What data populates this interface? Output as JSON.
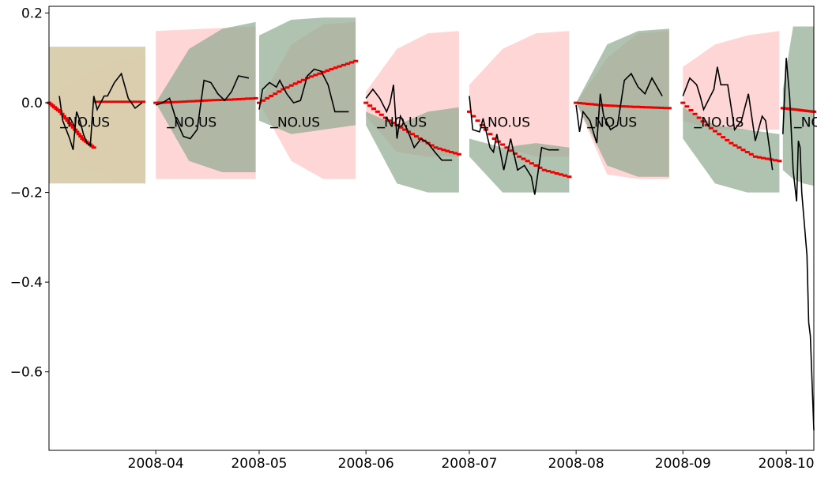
{
  "chart_data": {
    "type": "line",
    "title": "",
    "xlabel": "",
    "ylabel": "",
    "x_range": [
      "2008-03-01",
      "2008-10-09"
    ],
    "ylim": [
      -0.775,
      0.215
    ],
    "grid": false,
    "x_ticks": [
      {
        "date": "2008-04-01",
        "label": "2008-04"
      },
      {
        "date": "2008-05-01",
        "label": "2008-05"
      },
      {
        "date": "2008-06-01",
        "label": "2008-06"
      },
      {
        "date": "2008-07-01",
        "label": "2008-07"
      },
      {
        "date": "2008-08-01",
        "label": "2008-08"
      },
      {
        "date": "2008-09-01",
        "label": "2008-09"
      },
      {
        "date": "2008-10-01",
        "label": "2008-10"
      }
    ],
    "y_ticks": [
      {
        "value": 0.2,
        "label": "0.2"
      },
      {
        "value": 0.0,
        "label": "0.0"
      },
      {
        "value": -0.2,
        "label": "−0.2"
      },
      {
        "value": -0.4,
        "label": "−0.4"
      },
      {
        "value": -0.6,
        "label": "−0.6"
      }
    ],
    "colors": {
      "actual": "#000000",
      "forecast": "#ee0000",
      "band_red": "#ffc0c0",
      "band_green": "#8faa8f",
      "band_olive": "#d8ceac"
    },
    "segments": [
      {
        "label": "NO.US",
        "start": "2008-03-01",
        "mid": "2008-03-14",
        "end": "2008-03-29",
        "label_y": -0.045,
        "forecast": [
          0,
          -0.02,
          -0.05,
          -0.08,
          -0.1
        ],
        "forecast2": [
          0.002,
          0.003,
          0.004
        ],
        "band_red": [
          [
            0.005,
            -0.005
          ],
          [
            0.06,
            -0.14
          ],
          [
            0.095,
            -0.175
          ],
          [
            0.105,
            -0.18
          ]
        ],
        "band_olive": [
          [
            0.125,
            -0.18
          ],
          [
            0.125,
            -0.18
          ]
        ],
        "band_green": [],
        "actual": [
          {
            "d": "2008-03-04",
            "v": 0.015
          },
          {
            "d": "2008-03-05",
            "v": -0.04
          },
          {
            "d": "2008-03-06",
            "v": -0.06
          },
          {
            "d": "2008-03-07",
            "v": -0.08
          },
          {
            "d": "2008-03-08",
            "v": -0.105
          },
          {
            "d": "2008-03-09",
            "v": -0.02
          },
          {
            "d": "2008-03-10",
            "v": -0.04
          },
          {
            "d": "2008-03-11",
            "v": -0.07
          },
          {
            "d": "2008-03-12",
            "v": -0.09
          },
          {
            "d": "2008-03-13",
            "v": -0.095
          },
          {
            "d": "2008-03-14",
            "v": 0.015
          },
          {
            "d": "2008-03-15",
            "v": -0.015
          },
          {
            "d": "2008-03-17",
            "v": 0.015
          },
          {
            "d": "2008-03-18",
            "v": 0.015
          },
          {
            "d": "2008-03-20",
            "v": 0.045
          },
          {
            "d": "2008-03-22",
            "v": 0.065
          },
          {
            "d": "2008-03-24",
            "v": 0.01
          },
          {
            "d": "2008-03-26",
            "v": -0.012
          },
          {
            "d": "2008-03-28",
            "v": 0.0
          }
        ]
      },
      {
        "label": "NO.US",
        "start": "2008-04-01",
        "end": "2008-04-30",
        "label_y": -0.045,
        "forecast": [
          0.0,
          0.002,
          0.005,
          0.007,
          0.01
        ],
        "band_red": [
          [
            0.16,
            -0.17
          ],
          [
            0.17,
            -0.17
          ]
        ],
        "band_olive": [],
        "band_green": [
          [
            0.0,
            -0.0
          ],
          [
            0.12,
            -0.13
          ],
          [
            0.165,
            -0.155
          ],
          [
            0.18,
            -0.155
          ]
        ],
        "actual": [
          {
            "d": "2008-04-01",
            "v": -0.005
          },
          {
            "d": "2008-04-03",
            "v": 0.0
          },
          {
            "d": "2008-04-05",
            "v": 0.01
          },
          {
            "d": "2008-04-07",
            "v": -0.04
          },
          {
            "d": "2008-04-09",
            "v": -0.075
          },
          {
            "d": "2008-04-11",
            "v": -0.08
          },
          {
            "d": "2008-04-13",
            "v": -0.06
          },
          {
            "d": "2008-04-15",
            "v": 0.05
          },
          {
            "d": "2008-04-17",
            "v": 0.045
          },
          {
            "d": "2008-04-19",
            "v": 0.02
          },
          {
            "d": "2008-04-21",
            "v": 0.005
          },
          {
            "d": "2008-04-23",
            "v": 0.025
          },
          {
            "d": "2008-04-25",
            "v": 0.06
          },
          {
            "d": "2008-04-28",
            "v": 0.055
          }
        ]
      },
      {
        "label": "NO.US",
        "start": "2008-05-01",
        "end": "2008-05-29",
        "label_y": -0.045,
        "forecast": [
          0.0,
          0.03,
          0.055,
          0.075,
          0.093
        ],
        "band_red": [
          [
            0.0,
            -0.0
          ],
          [
            0.13,
            -0.13
          ],
          [
            0.175,
            -0.17
          ],
          [
            0.18,
            -0.17
          ]
        ],
        "band_olive": [],
        "band_green": [
          [
            0.15,
            -0.04
          ],
          [
            0.185,
            -0.07
          ],
          [
            0.19,
            -0.06
          ],
          [
            0.19,
            -0.05
          ]
        ],
        "actual": [
          {
            "d": "2008-05-01",
            "v": -0.015
          },
          {
            "d": "2008-05-02",
            "v": 0.03
          },
          {
            "d": "2008-05-04",
            "v": 0.045
          },
          {
            "d": "2008-05-06",
            "v": 0.035
          },
          {
            "d": "2008-05-07",
            "v": 0.05
          },
          {
            "d": "2008-05-09",
            "v": 0.02
          },
          {
            "d": "2008-05-11",
            "v": 0.0
          },
          {
            "d": "2008-05-13",
            "v": 0.005
          },
          {
            "d": "2008-05-15",
            "v": 0.06
          },
          {
            "d": "2008-05-17",
            "v": 0.075
          },
          {
            "d": "2008-05-19",
            "v": 0.07
          },
          {
            "d": "2008-05-21",
            "v": 0.04
          },
          {
            "d": "2008-05-23",
            "v": -0.02
          },
          {
            "d": "2008-05-27",
            "v": -0.02
          }
        ]
      },
      {
        "label": "NO.US",
        "start": "2008-06-01",
        "end": "2008-06-28",
        "label_y": -0.045,
        "forecast": [
          0.0,
          -0.04,
          -0.07,
          -0.1,
          -0.115
        ],
        "band_red": [
          [
            0.025,
            -0.03
          ],
          [
            0.12,
            -0.11
          ],
          [
            0.155,
            -0.12
          ],
          [
            0.16,
            -0.12
          ]
        ],
        "band_olive": [],
        "band_green": [
          [
            -0.02,
            -0.05
          ],
          [
            -0.05,
            -0.18
          ],
          [
            -0.02,
            -0.2
          ],
          [
            -0.01,
            -0.2
          ]
        ],
        "actual": [
          {
            "d": "2008-06-01",
            "v": 0.01
          },
          {
            "d": "2008-06-03",
            "v": 0.03
          },
          {
            "d": "2008-06-05",
            "v": 0.01
          },
          {
            "d": "2008-06-07",
            "v": -0.02
          },
          {
            "d": "2008-06-08",
            "v": 0.0
          },
          {
            "d": "2008-06-09",
            "v": 0.04
          },
          {
            "d": "2008-06-10",
            "v": -0.08
          },
          {
            "d": "2008-06-11",
            "v": -0.03
          },
          {
            "d": "2008-06-13",
            "v": -0.06
          },
          {
            "d": "2008-06-15",
            "v": -0.1
          },
          {
            "d": "2008-06-17",
            "v": -0.08
          },
          {
            "d": "2008-06-19",
            "v": -0.09
          },
          {
            "d": "2008-06-21",
            "v": -0.11
          },
          {
            "d": "2008-06-23",
            "v": -0.128
          },
          {
            "d": "2008-06-26",
            "v": -0.128
          }
        ]
      },
      {
        "label": "NO.US",
        "start": "2008-07-01",
        "end": "2008-07-30",
        "label_y": -0.045,
        "forecast": [
          -0.02,
          -0.08,
          -0.12,
          -0.15,
          -0.165
        ],
        "band_red": [
          [
            0.04,
            -0.02
          ],
          [
            0.12,
            -0.1
          ],
          [
            0.155,
            -0.12
          ],
          [
            0.16,
            -0.12
          ]
        ],
        "band_olive": [],
        "band_green": [
          [
            -0.08,
            -0.12
          ],
          [
            -0.1,
            -0.2
          ],
          [
            -0.09,
            -0.2
          ],
          [
            -0.1,
            -0.2
          ]
        ],
        "actual": [
          {
            "d": "2008-07-01",
            "v": 0.015
          },
          {
            "d": "2008-07-02",
            "v": -0.06
          },
          {
            "d": "2008-07-04",
            "v": -0.065
          },
          {
            "d": "2008-07-05",
            "v": -0.035
          },
          {
            "d": "2008-07-07",
            "v": -0.1
          },
          {
            "d": "2008-07-08",
            "v": -0.11
          },
          {
            "d": "2008-07-09",
            "v": -0.07
          },
          {
            "d": "2008-07-11",
            "v": -0.15
          },
          {
            "d": "2008-07-13",
            "v": -0.08
          },
          {
            "d": "2008-07-15",
            "v": -0.15
          },
          {
            "d": "2008-07-17",
            "v": -0.14
          },
          {
            "d": "2008-07-19",
            "v": -0.165
          },
          {
            "d": "2008-07-20",
            "v": -0.205
          },
          {
            "d": "2008-07-22",
            "v": -0.1
          },
          {
            "d": "2008-07-24",
            "v": -0.105
          },
          {
            "d": "2008-07-27",
            "v": -0.105
          }
        ]
      },
      {
        "label": "NO.US",
        "start": "2008-08-01",
        "end": "2008-08-28",
        "label_y": -0.045,
        "forecast": [
          0.0,
          -0.005,
          -0.008,
          -0.01,
          -0.012
        ],
        "band_red": [
          [
            0.0,
            -0.0
          ],
          [
            0.1,
            -0.16
          ],
          [
            0.155,
            -0.17
          ],
          [
            0.16,
            -0.17
          ]
        ],
        "band_olive": [],
        "band_green": [
          [
            0.0,
            -0.0
          ],
          [
            0.13,
            -0.14
          ],
          [
            0.16,
            -0.165
          ],
          [
            0.165,
            -0.165
          ]
        ],
        "actual": [
          {
            "d": "2008-08-01",
            "v": -0.005
          },
          {
            "d": "2008-08-02",
            "v": -0.065
          },
          {
            "d": "2008-08-03",
            "v": -0.02
          },
          {
            "d": "2008-08-05",
            "v": -0.04
          },
          {
            "d": "2008-08-07",
            "v": -0.09
          },
          {
            "d": "2008-08-08",
            "v": 0.02
          },
          {
            "d": "2008-08-09",
            "v": -0.03
          },
          {
            "d": "2008-08-11",
            "v": -0.06
          },
          {
            "d": "2008-08-13",
            "v": -0.05
          },
          {
            "d": "2008-08-15",
            "v": 0.05
          },
          {
            "d": "2008-08-17",
            "v": 0.065
          },
          {
            "d": "2008-08-19",
            "v": 0.035
          },
          {
            "d": "2008-08-21",
            "v": 0.02
          },
          {
            "d": "2008-08-23",
            "v": 0.055
          },
          {
            "d": "2008-08-26",
            "v": 0.015
          }
        ]
      },
      {
        "label": "NO.US",
        "start": "2008-09-01",
        "end": "2008-09-29",
        "label_y": -0.045,
        "forecast": [
          0.0,
          -0.05,
          -0.09,
          -0.12,
          -0.13
        ],
        "band_red": [
          [
            0.08,
            -0.04
          ],
          [
            0.13,
            -0.06
          ],
          [
            0.15,
            -0.06
          ],
          [
            0.16,
            -0.06
          ]
        ],
        "band_olive": [],
        "band_green": [
          [
            -0.01,
            -0.08
          ],
          [
            -0.05,
            -0.18
          ],
          [
            -0.06,
            -0.2
          ],
          [
            -0.07,
            -0.2
          ]
        ],
        "actual": [
          {
            "d": "2008-09-01",
            "v": 0.015
          },
          {
            "d": "2008-09-03",
            "v": 0.055
          },
          {
            "d": "2008-09-05",
            "v": 0.04
          },
          {
            "d": "2008-09-06",
            "v": 0.015
          },
          {
            "d": "2008-09-07",
            "v": -0.015
          },
          {
            "d": "2008-09-09",
            "v": 0.015
          },
          {
            "d": "2008-09-10",
            "v": 0.03
          },
          {
            "d": "2008-09-11",
            "v": 0.08
          },
          {
            "d": "2008-09-12",
            "v": 0.04
          },
          {
            "d": "2008-09-14",
            "v": 0.04
          },
          {
            "d": "2008-09-16",
            "v": -0.06
          },
          {
            "d": "2008-09-18",
            "v": -0.04
          },
          {
            "d": "2008-09-20",
            "v": 0.02
          },
          {
            "d": "2008-09-22",
            "v": -0.085
          },
          {
            "d": "2008-09-24",
            "v": -0.03
          },
          {
            "d": "2008-09-25",
            "v": -0.04
          },
          {
            "d": "2008-09-27",
            "v": -0.15
          }
        ]
      },
      {
        "label": "NO.US",
        "start": "2008-09-30",
        "end": "2008-10-09",
        "label_y": -0.045,
        "forecast": [
          -0.012,
          -0.014,
          -0.016,
          -0.018,
          -0.02
        ],
        "band_red": [],
        "band_olive": [],
        "band_green": [
          [
            0.03,
            -0.15
          ],
          [
            0.17,
            -0.17
          ],
          [
            0.17,
            -0.18
          ],
          [
            0.17,
            -0.185
          ]
        ],
        "actual": [
          {
            "d": "2008-09-30",
            "v": -0.07
          },
          {
            "d": "2008-10-01",
            "v": 0.1
          },
          {
            "d": "2008-10-02",
            "v": 0.01
          },
          {
            "d": "2008-10-03",
            "v": -0.15
          },
          {
            "d": "2008-10-04",
            "v": -0.22
          },
          {
            "d": "2008-10-04.5",
            "v": -0.085
          },
          {
            "d": "2008-10-05",
            "v": -0.1
          },
          {
            "d": "2008-10-05.5",
            "v": -0.2
          },
          {
            "d": "2008-10-07",
            "v": -0.34
          },
          {
            "d": "2008-10-07.5",
            "v": -0.49
          },
          {
            "d": "2008-10-08",
            "v": -0.52
          },
          {
            "d": "2008-10-09",
            "v": -0.73
          }
        ]
      }
    ]
  }
}
